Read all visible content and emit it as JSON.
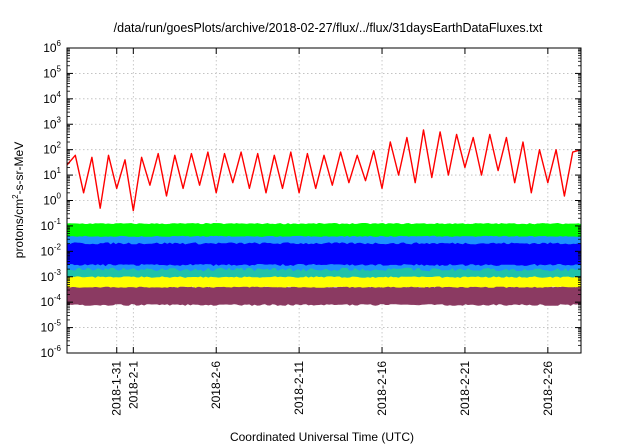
{
  "chart_data": {
    "type": "line",
    "title": "/data/run/goesPlots/archive/2018-02-27/flux/../flux/31daysEarthDataFluxes.txt",
    "xlabel": "Coordinated Universal Time (UTC)",
    "ylabel_parts": [
      "protons/cm",
      "2",
      "-s-sr-MeV"
    ],
    "yscale": "log",
    "ylim": [
      1e-06,
      1000000.0
    ],
    "yticks": [
      {
        "base": "10",
        "exp": "-6",
        "value": 1e-06
      },
      {
        "base": "10",
        "exp": "-5",
        "value": 1e-05
      },
      {
        "base": "10",
        "exp": "-4",
        "value": 0.0001
      },
      {
        "base": "10",
        "exp": "-3",
        "value": 0.001
      },
      {
        "base": "10",
        "exp": "-2",
        "value": 0.01
      },
      {
        "base": "10",
        "exp": "-1",
        "value": 0.1
      },
      {
        "base": "10",
        "exp": "0",
        "value": 1
      },
      {
        "base": "10",
        "exp": "1",
        "value": 10
      },
      {
        "base": "10",
        "exp": "2",
        "value": 100
      },
      {
        "base": "10",
        "exp": "3",
        "value": 1000
      },
      {
        "base": "10",
        "exp": "4",
        "value": 10000
      },
      {
        "base": "10",
        "exp": "5",
        "value": 100000
      },
      {
        "base": "10",
        "exp": "6",
        "value": 1000000
      }
    ],
    "xlim": [
      "2018-01-28",
      "2018-02-28"
    ],
    "xticks": [
      {
        "date": "2018-01-31",
        "label": "2018-1-31"
      },
      {
        "date": "2018-02-01",
        "label": "2018-2-1"
      },
      {
        "date": "2018-02-06",
        "label": "2018-2-6"
      },
      {
        "date": "2018-02-11",
        "label": "2018-2-11"
      },
      {
        "date": "2018-02-16",
        "label": "2018-2-16"
      },
      {
        "date": "2018-02-21",
        "label": "2018-2-21"
      },
      {
        "date": "2018-02-26",
        "label": "2018-2-26"
      }
    ],
    "grid": true,
    "series": [
      {
        "color": "#8b3a62",
        "low": 8e-05,
        "high": 0.0004
      },
      {
        "color": "#ffff00",
        "low": 0.0004,
        "high": 0.0012
      },
      {
        "color": "#1fc3a8",
        "low": 0.001,
        "high": 0.004
      },
      {
        "color": "#1e90ff",
        "low": 0.002,
        "high": 0.06
      },
      {
        "color": "#00ff00",
        "low": 0.04,
        "high": 0.12
      },
      {
        "color": "#0000ff",
        "low": 0.003,
        "high": 0.02
      },
      {
        "color": "#ff0000",
        "x": [
          "2018-01-28T00:00",
          "2018-01-28T12:00",
          "2018-01-29T00:00",
          "2018-01-29T12:00",
          "2018-01-30T00:00",
          "2018-01-30T12:00",
          "2018-01-31T00:00",
          "2018-01-31T12:00",
          "2018-02-01T00:00",
          "2018-02-01T12:00",
          "2018-02-02T00:00",
          "2018-02-02T12:00",
          "2018-02-03T00:00",
          "2018-02-03T12:00",
          "2018-02-04T00:00",
          "2018-02-04T12:00",
          "2018-02-05T00:00",
          "2018-02-05T12:00",
          "2018-02-06T00:00",
          "2018-02-06T12:00",
          "2018-02-07T00:00",
          "2018-02-07T12:00",
          "2018-02-08T00:00",
          "2018-02-08T12:00",
          "2018-02-09T00:00",
          "2018-02-09T12:00",
          "2018-02-10T00:00",
          "2018-02-10T12:00",
          "2018-02-11T00:00",
          "2018-02-11T12:00",
          "2018-02-12T00:00",
          "2018-02-12T12:00",
          "2018-02-13T00:00",
          "2018-02-13T12:00",
          "2018-02-14T00:00",
          "2018-02-14T12:00",
          "2018-02-15T00:00",
          "2018-02-15T12:00",
          "2018-02-16T00:00",
          "2018-02-16T12:00",
          "2018-02-17T00:00",
          "2018-02-17T12:00",
          "2018-02-18T00:00",
          "2018-02-18T12:00",
          "2018-02-19T00:00",
          "2018-02-19T12:00",
          "2018-02-20T00:00",
          "2018-02-20T12:00",
          "2018-02-21T00:00",
          "2018-02-21T12:00",
          "2018-02-22T00:00",
          "2018-02-22T12:00",
          "2018-02-23T00:00",
          "2018-02-23T12:00",
          "2018-02-24T00:00",
          "2018-02-24T12:00",
          "2018-02-25T00:00",
          "2018-02-25T12:00",
          "2018-02-26T00:00",
          "2018-02-26T12:00",
          "2018-02-27T00:00",
          "2018-02-27T12:00",
          "2018-02-28T00:00"
        ],
        "y": [
          25,
          60,
          2,
          50,
          0.5,
          60,
          3,
          40,
          0.4,
          50,
          4,
          70,
          1.5,
          60,
          3,
          70,
          4,
          80,
          2,
          70,
          5,
          80,
          3,
          70,
          2,
          60,
          3,
          80,
          2,
          70,
          3,
          60,
          4,
          80,
          5,
          60,
          6,
          90,
          3,
          200,
          10,
          300,
          5,
          600,
          8,
          500,
          10,
          400,
          20,
          300,
          10,
          400,
          15,
          300,
          5,
          200,
          2,
          100,
          5,
          100,
          1.5,
          80,
          100
        ]
      }
    ]
  }
}
